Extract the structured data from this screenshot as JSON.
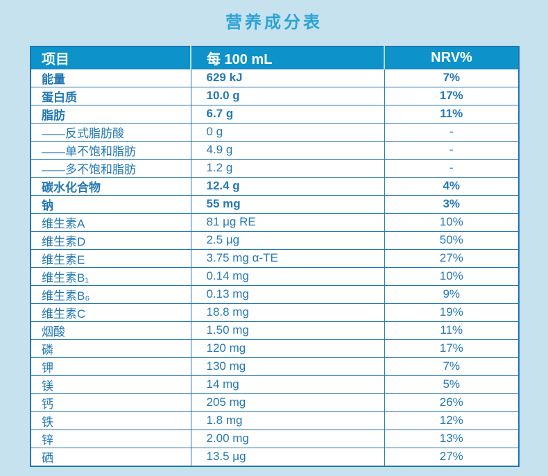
{
  "title": "营养成分表",
  "colors": {
    "page_bg": "#c7e2ef",
    "header_bg": "#0d93c9",
    "header_text": "#ffffff",
    "header_divider": "#b9ddee",
    "border": "#1e76b4",
    "text": "#2478b6",
    "title": "#2ca3d6",
    "cell_bg": "#ffffff"
  },
  "table": {
    "headers": [
      "项目",
      "每 100 mL",
      "NRV%"
    ],
    "rows": [
      {
        "item": "能量",
        "per100ml": "629 kJ",
        "nrv": "7%",
        "bold": true
      },
      {
        "item": "蛋白质",
        "per100ml": "10.0 g",
        "nrv": "17%",
        "bold": true
      },
      {
        "item": "脂肪",
        "per100ml": "6.7 g",
        "nrv": "11%",
        "bold": true
      },
      {
        "item": "——反式脂肪酸",
        "per100ml": "0 g",
        "nrv": "-",
        "bold": false
      },
      {
        "item": "——单不饱和脂肪",
        "per100ml": "4.9 g",
        "nrv": "-",
        "bold": false
      },
      {
        "item": "——多不饱和脂肪",
        "per100ml": "1.2 g",
        "nrv": "-",
        "bold": false
      },
      {
        "item": "碳水化合物",
        "per100ml": "12.4 g",
        "nrv": "4%",
        "bold": true
      },
      {
        "item": "钠",
        "per100ml": "55 mg",
        "nrv": "3%",
        "bold": true
      },
      {
        "item": "维生素A",
        "per100ml": "81 μg RE",
        "nrv": "10%",
        "bold": false
      },
      {
        "item": "维生素D",
        "per100ml": "2.5 μg",
        "nrv": "50%",
        "bold": false
      },
      {
        "item": "维生素E",
        "per100ml": "3.75 mg α-TE",
        "nrv": "27%",
        "bold": false
      },
      {
        "item": "维生素B₁",
        "per100ml": "0.14 mg",
        "nrv": "10%",
        "bold": false
      },
      {
        "item": "维生素B₆",
        "per100ml": "0.13 mg",
        "nrv": "9%",
        "bold": false
      },
      {
        "item": "维生素C",
        "per100ml": "18.8 mg",
        "nrv": "19%",
        "bold": false
      },
      {
        "item": "烟酸",
        "per100ml": "1.50 mg",
        "nrv": "11%",
        "bold": false
      },
      {
        "item": "磷",
        "per100ml": "120 mg",
        "nrv": "17%",
        "bold": false
      },
      {
        "item": "钾",
        "per100ml": "130 mg",
        "nrv": "7%",
        "bold": false
      },
      {
        "item": "镁",
        "per100ml": "14 mg",
        "nrv": "5%",
        "bold": false
      },
      {
        "item": "钙",
        "per100ml": "205 mg",
        "nrv": "26%",
        "bold": false
      },
      {
        "item": "铁",
        "per100ml": "1.8 mg",
        "nrv": "12%",
        "bold": false
      },
      {
        "item": "锌",
        "per100ml": "2.00 mg",
        "nrv": "13%",
        "bold": false
      },
      {
        "item": "硒",
        "per100ml": "13.5 μg",
        "nrv": "27%",
        "bold": false
      }
    ]
  }
}
